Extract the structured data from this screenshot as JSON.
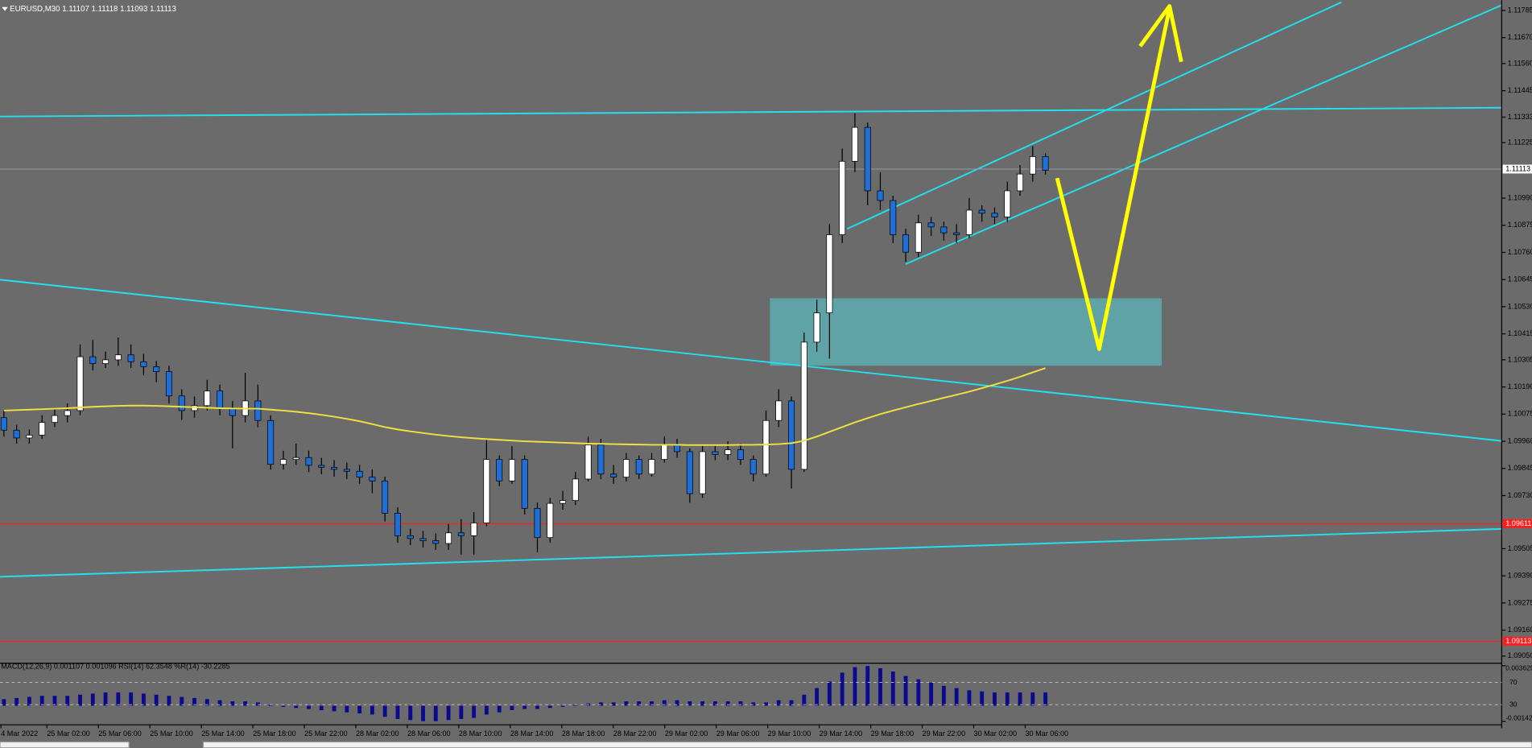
{
  "chart_data": {
    "type": "candlestick",
    "title": "EURUSD,M30  1.11107 1.11118 1.11093 1.11113",
    "ylim": [
      1.0903,
      1.1182
    ],
    "yticks": [
      1.11785,
      {
        "value": 1.1167,
        "label": "1.11670"
      },
      {
        "value": 1.1156,
        "label": "1.11560"
      },
      1.11445,
      1.11333,
      1.11225,
      {
        "value": 1.1099,
        "label": "1.10990"
      },
      1.10875,
      {
        "value": 1.1076,
        "label": "1.10760"
      },
      1.10645,
      {
        "value": 1.1053,
        "label": "1.10530"
      },
      1.10415,
      1.10305,
      {
        "value": 1.1019,
        "label": "1.10190"
      },
      1.10075,
      {
        "value": 1.0996,
        "label": "1.09960"
      },
      1.09845,
      {
        "value": 1.0973,
        "label": "1.09730"
      },
      1.09505,
      {
        "value": 1.0939,
        "label": "1.09390"
      },
      1.09275,
      {
        "value": 1.0916,
        "label": "1.09160"
      },
      {
        "value": 1.0905,
        "label": "1.09050"
      }
    ],
    "x_labels": [
      "4 Mar 2022",
      "25 Mar 02:00",
      "25 Mar 06:00",
      "25 Mar 10:00",
      "25 Mar 14:00",
      "25 Mar 18:00",
      "25 Mar 22:00",
      "28 Mar 02:00",
      "28 Mar 06:00",
      "28 Mar 10:00",
      "28 Mar 14:00",
      "28 Mar 18:00",
      "28 Mar 22:00",
      "29 Mar 02:00",
      "29 Mar 06:00",
      "29 Mar 10:00",
      "29 Mar 14:00",
      "29 Mar 18:00",
      "29 Mar 22:00",
      "30 Mar 02:00",
      "30 Mar 06:00"
    ],
    "current_price": 1.11113,
    "price_lines": [
      1.09611,
      1.09113
    ],
    "colors": {
      "bull": "#ffffff",
      "bear": "#1f6fd6",
      "wick": "#000000",
      "ma": "#f0e040",
      "price_line": "#ff1e1e",
      "macd": "#0a0a8c"
    },
    "open": [
      1.1006,
      1.10007,
      1.09974,
      1.09986,
      1.1004,
      1.10069,
      1.1009,
      1.10318,
      1.10289,
      1.10305,
      1.10326,
      1.10297,
      1.10276,
      1.10255,
      1.10152,
      1.1009,
      1.10111,
      1.10173,
      1.10098,
      1.10069,
      1.10131,
      1.10048,
      1.09862,
      1.09883,
      1.09891,
      1.09858,
      1.0985,
      1.09841,
      1.09833,
      1.09808,
      1.09792,
      1.09655,
      1.0956,
      1.09548,
      1.09539,
      1.09527,
      1.09572,
      1.0956,
      1.09614,
      1.09883,
      1.09792,
      1.09883,
      1.09676,
      1.09552,
      1.09697,
      1.09709,
      1.098,
      1.09945,
      1.09821,
      1.09808,
      1.09883,
      1.09821,
      1.09883,
      1.09945,
      1.09916,
      1.09738,
      1.09916,
      1.09904,
      1.09924,
      1.09883,
      1.09821,
      1.10048,
      1.10131,
      1.09841,
      1.1038,
      1.10504,
      1.10835,
      1.11146,
      1.1129,
      1.11021,
      1.1098,
      1.10835,
      1.10761,
      1.10885,
      1.10868,
      1.10843,
      1.10835,
      1.10939,
      1.10926,
      1.1091,
      1.11021,
      1.11092,
      1.11166
    ],
    "high": [
      1.1009,
      1.1003,
      1.1001,
      1.1007,
      1.101,
      1.1012,
      1.1037,
      1.1039,
      1.1034,
      1.104,
      1.1037,
      1.1033,
      1.103,
      1.1028,
      1.1018,
      1.1015,
      1.1022,
      1.102,
      1.1013,
      1.1025,
      1.102,
      1.1007,
      1.0992,
      1.0995,
      1.0992,
      1.0989,
      1.0988,
      1.0987,
      1.0986,
      1.0984,
      1.0981,
      1.0968,
      1.0959,
      1.0958,
      1.0957,
      1.0961,
      1.0963,
      1.0966,
      1.0997,
      1.099,
      1.0994,
      1.099,
      1.097,
      1.0972,
      1.0975,
      1.0983,
      1.0998,
      1.0997,
      1.0986,
      1.0991,
      1.099,
      1.0991,
      1.0998,
      1.0997,
      1.0993,
      1.0994,
      1.0994,
      1.0996,
      1.0995,
      1.099,
      1.1009,
      1.1018,
      1.1015,
      1.1042,
      1.1056,
      1.1088,
      1.112,
      1.1135,
      1.1131,
      1.111,
      1.11,
      1.1086,
      1.1092,
      1.1091,
      1.1089,
      1.1088,
      1.1099,
      1.1096,
      1.1095,
      1.1106,
      1.1113,
      1.1121,
      1.1118
    ],
    "low": [
      1.0998,
      1.0995,
      1.0995,
      1.0997,
      1.1002,
      1.1004,
      1.1007,
      1.1026,
      1.1027,
      1.1028,
      1.1027,
      1.1024,
      1.1021,
      1.1012,
      1.1005,
      1.1006,
      1.1009,
      1.1007,
      1.0993,
      1.1004,
      1.1002,
      1.0984,
      1.0984,
      1.0986,
      1.0983,
      1.0982,
      1.0981,
      1.098,
      1.0978,
      1.0974,
      1.0962,
      1.0953,
      1.0952,
      1.0951,
      1.095,
      1.095,
      1.0948,
      1.0948,
      1.096,
      1.0977,
      1.0978,
      1.0965,
      1.0949,
      1.0953,
      1.0967,
      1.0969,
      1.0979,
      1.098,
      1.0978,
      1.0979,
      1.098,
      1.0981,
      1.0987,
      1.0989,
      1.097,
      1.0972,
      1.0988,
      1.0988,
      1.0986,
      1.0979,
      1.0981,
      1.1002,
      1.0976,
      1.0983,
      1.1034,
      1.1031,
      1.108,
      1.111,
      1.1096,
      1.1094,
      1.108,
      1.1072,
      1.1074,
      1.1083,
      1.1081,
      1.108,
      1.1082,
      1.1089,
      1.1088,
      1.1089,
      1.11,
      1.1106,
      1.1109
    ],
    "close": [
      1.10007,
      1.09974,
      1.09986,
      1.1004,
      1.10069,
      1.1009,
      1.10318,
      1.10289,
      1.10305,
      1.10326,
      1.10297,
      1.10276,
      1.10255,
      1.10152,
      1.1009,
      1.10111,
      1.10173,
      1.10098,
      1.10069,
      1.10131,
      1.10048,
      1.09862,
      1.09883,
      1.09891,
      1.09858,
      1.0985,
      1.09841,
      1.09833,
      1.09808,
      1.09792,
      1.09655,
      1.0956,
      1.09548,
      1.09539,
      1.09527,
      1.09572,
      1.0956,
      1.09614,
      1.09883,
      1.09792,
      1.09883,
      1.09676,
      1.09552,
      1.09697,
      1.09709,
      1.098,
      1.09945,
      1.09821,
      1.09808,
      1.09883,
      1.09821,
      1.09883,
      1.09945,
      1.09916,
      1.09738,
      1.09916,
      1.09904,
      1.09924,
      1.09883,
      1.09821,
      1.10048,
      1.10131,
      1.09841,
      1.1038,
      1.10504,
      1.10835,
      1.11146,
      1.1129,
      1.11021,
      1.1098,
      1.10835,
      1.10761,
      1.10885,
      1.10868,
      1.10843,
      1.10835,
      1.10939,
      1.10926,
      1.1091,
      1.11021,
      1.11092,
      1.11166,
      1.11108
    ],
    "ma": [
      1.1009,
      1.10092,
      1.10094,
      1.10096,
      1.10098,
      1.101,
      1.10103,
      1.10106,
      1.10108,
      1.1011,
      1.10111,
      1.10111,
      1.1011,
      1.10108,
      1.10106,
      1.10104,
      1.10102,
      1.101,
      1.10099,
      1.10098,
      1.10098,
      1.10094,
      1.1009,
      1.10085,
      1.10079,
      1.10072,
      1.10064,
      1.10055,
      1.10045,
      1.10033,
      1.1002,
      1.1001,
      1.10002,
      1.09995,
      1.09988,
      1.09982,
      1.09977,
      1.09973,
      1.09969,
      1.09966,
      1.09963,
      1.0996,
      1.09958,
      1.09956,
      1.09954,
      1.09952,
      1.0995,
      1.09949,
      1.09948,
      1.09947,
      1.09946,
      1.09945,
      1.09945,
      1.09945,
      1.09944,
      1.09944,
      1.09944,
      1.09944,
      1.09945,
      1.09945,
      1.09946,
      1.09948,
      1.09952,
      1.09962,
      1.0998,
      1.1,
      1.1002,
      1.1004,
      1.10058,
      1.10075,
      1.1009,
      1.10104,
      1.10118,
      1.10131,
      1.10144,
      1.10157,
      1.1017,
      1.10185,
      1.102,
      1.10216,
      1.10233,
      1.10252,
      1.1027
    ],
    "indicator": {
      "title": "MACD(12,26,9) 0.001107 0.001096 RSI(14) 62.3548 %R(14) -30.2285",
      "ylim": [
        -0.00142,
        0.003629
      ],
      "yticks": [
        0.003629,
        -0.00142
      ],
      "level_lim": [
        0,
        100
      ],
      "levels": [
        70,
        30
      ],
      "macd": [
        0.0006,
        0.0007,
        0.0008,
        0.0009,
        0.0009,
        0.0009,
        0.001,
        0.0011,
        0.0012,
        0.0012,
        0.0012,
        0.0011,
        0.001,
        0.0009,
        0.0008,
        0.0007,
        0.0006,
        0.0005,
        0.0004,
        0.0004,
        0.0003,
        0.0001,
        -0.0001,
        -0.0002,
        -0.0003,
        -0.0004,
        -0.0005,
        -0.0006,
        -0.0007,
        -0.0008,
        -0.001,
        -0.0012,
        -0.0013,
        -0.0014,
        -0.0014,
        -0.0013,
        -0.0012,
        -0.0011,
        -0.0008,
        -0.0006,
        -0.0004,
        -0.0003,
        -0.0003,
        -0.0002,
        -0.0001,
        0.0001,
        0.0002,
        0.0003,
        0.0003,
        0.0004,
        0.0004,
        0.0004,
        0.0005,
        0.0005,
        0.0004,
        0.0004,
        0.0004,
        0.0004,
        0.0004,
        0.0003,
        0.0003,
        0.0005,
        0.0005,
        0.001,
        0.0016,
        0.0022,
        0.003,
        0.0035,
        0.0036,
        0.0034,
        0.0031,
        0.0027,
        0.0024,
        0.0021,
        0.0018,
        0.0016,
        0.0014,
        0.0013,
        0.0012,
        0.0012,
        0.0012,
        0.0012,
        0.0012
      ]
    }
  }
}
